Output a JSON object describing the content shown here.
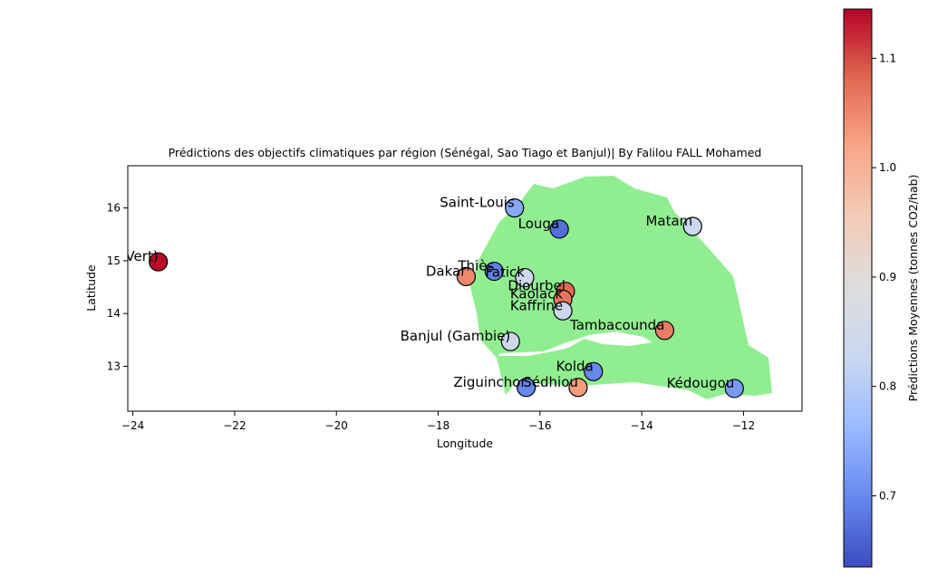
{
  "chart_data": {
    "type": "scatter",
    "title": "Prédictions des objectifs climatiques par région (Sénégal, Sao Tiago et Banjul)| By Falilou FALL Mohamed",
    "xlabel": "Longitude",
    "ylabel": "Latitude",
    "xlim": [
      -24.1,
      -10.85
    ],
    "ylim": [
      12.15,
      16.8
    ],
    "x_ticks": [
      -24,
      -22,
      -20,
      -18,
      -16,
      -14,
      -12
    ],
    "y_ticks": [
      13,
      14,
      15,
      16
    ],
    "grid": false,
    "legend": "none",
    "colorbar": {
      "label": "Prédictions Moyennes (tonnes CO2/hab)",
      "min": 0.635,
      "max": 1.145,
      "ticks": [
        0.7,
        0.8,
        0.9,
        1.0,
        1.1
      ],
      "colormap": "coolwarm",
      "stops": [
        "#3b4cc0",
        "#6788ee",
        "#9abbff",
        "#c9d7f0",
        "#dddddd",
        "#f2cbb7",
        "#f7a889",
        "#e26952",
        "#b40426"
      ]
    },
    "map_fill_color": "#90ee90",
    "marker_edge_color": "#000000",
    "points": [
      {
        "name": "Saint-Louis",
        "lon": -16.5,
        "lat": 16.0,
        "value": 0.74
      },
      {
        "name": "Louga",
        "lon": -15.62,
        "lat": 15.6,
        "value": 0.67
      },
      {
        "name": "Matam",
        "lon": -13.0,
        "lat": 15.65,
        "value": 0.83
      },
      {
        "name": "São Tiago(Cap-Vert)",
        "lon": -23.5,
        "lat": 14.98,
        "value": 1.14
      },
      {
        "name": "Thiès",
        "lon": -16.9,
        "lat": 14.8,
        "value": 0.69
      },
      {
        "name": "Dakar",
        "lon": -17.45,
        "lat": 14.7,
        "value": 1.05
      },
      {
        "name": "Fatick",
        "lon": -16.3,
        "lat": 14.68,
        "value": 0.84
      },
      {
        "name": "Diourbel",
        "lon": -15.5,
        "lat": 14.42,
        "value": 1.08
      },
      {
        "name": "Kaolack",
        "lon": -15.55,
        "lat": 14.27,
        "value": 1.07
      },
      {
        "name": "Kaffrine",
        "lon": -15.55,
        "lat": 14.05,
        "value": 0.83
      },
      {
        "name": "Tambacounda",
        "lon": -13.55,
        "lat": 13.68,
        "value": 1.06
      },
      {
        "name": "Banjul (Gambie)",
        "lon": -16.58,
        "lat": 13.47,
        "value": 0.84
      },
      {
        "name": "Kolda",
        "lon": -14.95,
        "lat": 12.9,
        "value": 0.7
      },
      {
        "name": "Ziguinchor",
        "lon": -16.27,
        "lat": 12.6,
        "value": 0.7
      },
      {
        "name": "Sédhiou",
        "lon": -15.25,
        "lat": 12.6,
        "value": 1.03
      },
      {
        "name": "Kédougou",
        "lon": -12.18,
        "lat": 12.58,
        "value": 0.72
      }
    ]
  }
}
